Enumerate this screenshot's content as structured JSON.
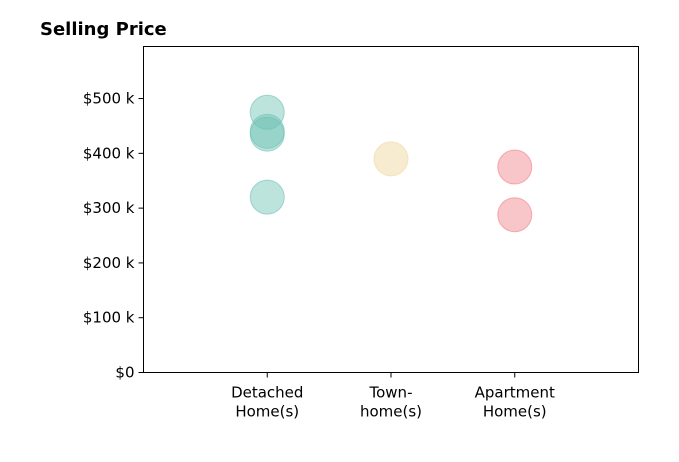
{
  "chart_data": {
    "type": "scatter",
    "title": "Selling Price",
    "xlabel": "",
    "ylabel": "",
    "categories": [
      [
        "Detached",
        "Home(s)"
      ],
      [
        "Town-",
        "home(s)"
      ],
      [
        "Apartment",
        "Home(s)"
      ]
    ],
    "xlim": [
      0,
      4
    ],
    "ylim": [
      0,
      595000
    ],
    "yticks": [
      0,
      100000,
      200000,
      300000,
      400000,
      500000
    ],
    "ytick_labels": [
      "$0",
      "$100 k",
      "$200 k",
      "$300 k",
      "$400 k",
      "$500 k"
    ],
    "grid": false,
    "legend": "none",
    "points": [
      {
        "category": 0,
        "y": 475000,
        "color": "#6dc0b4",
        "opacity": 0.45
      },
      {
        "category": 0,
        "y": 440000,
        "color": "#6dc0b4",
        "opacity": 0.45
      },
      {
        "category": 0,
        "y": 435000,
        "color": "#6dc0b4",
        "opacity": 0.45
      },
      {
        "category": 0,
        "y": 320000,
        "color": "#6dc0b4",
        "opacity": 0.45
      },
      {
        "category": 1,
        "y": 390000,
        "color": "#f2ddb0",
        "opacity": 0.6
      },
      {
        "category": 2,
        "y": 375000,
        "color": "#f07e88",
        "opacity": 0.45
      },
      {
        "category": 2,
        "y": 288000,
        "color": "#f07e88",
        "opacity": 0.45
      }
    ]
  }
}
